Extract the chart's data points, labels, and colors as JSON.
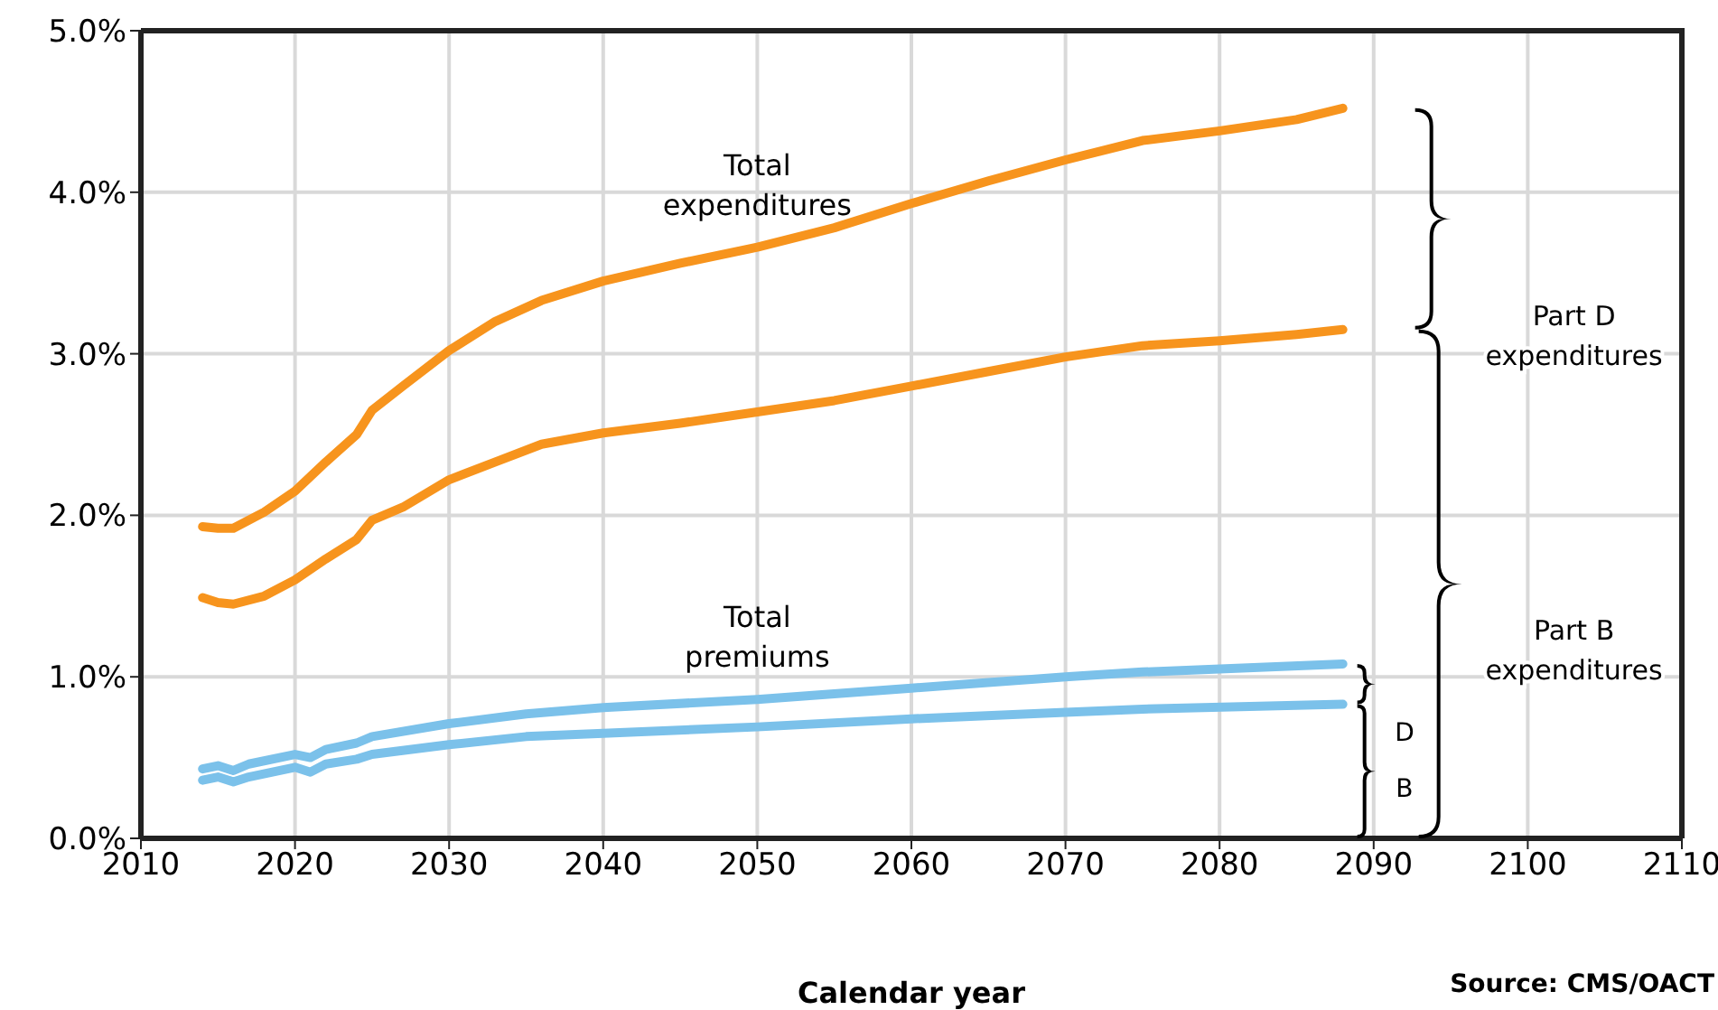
{
  "chart_data": {
    "type": "line",
    "xlabel": "Calendar year",
    "x": [
      2014,
      2015,
      2016,
      2018,
      2020,
      2022,
      2024,
      2025,
      2027,
      2030,
      2033,
      2036,
      2040,
      2045,
      2050,
      2055,
      2060,
      2065,
      2070,
      2075,
      2080,
      2085,
      2088
    ],
    "series": [
      {
        "name": "Total expenditures",
        "color": "#f7941d",
        "values": [
          1.93,
          1.92,
          1.92,
          2.02,
          2.15,
          2.33,
          2.5,
          2.65,
          2.8,
          3.02,
          3.2,
          3.33,
          3.45,
          3.56,
          3.66,
          3.78,
          3.93,
          4.07,
          4.2,
          4.32,
          4.38,
          4.45,
          4.52
        ]
      },
      {
        "color": "#f7941d",
        "values": [
          1.49,
          1.46,
          1.45,
          1.5,
          1.6,
          1.73,
          1.85,
          1.97,
          2.05,
          2.22,
          2.33,
          2.44,
          2.51,
          2.57,
          2.64,
          2.71,
          2.8,
          2.89,
          2.98,
          3.05,
          3.08,
          3.12,
          3.15
        ]
      },
      {
        "name": "Total premiums",
        "color": "#7bc1ea",
        "x": [
          2014,
          2015,
          2016,
          2017,
          2020,
          2021,
          2022,
          2024,
          2025,
          2030,
          2035,
          2040,
          2050,
          2060,
          2070,
          2075,
          2088
        ],
        "values": [
          0.43,
          0.45,
          0.42,
          0.46,
          0.52,
          0.5,
          0.55,
          0.59,
          0.63,
          0.71,
          0.77,
          0.81,
          0.86,
          0.93,
          1.0,
          1.03,
          1.08
        ]
      },
      {
        "color": "#7bc1ea",
        "x": [
          2014,
          2015,
          2016,
          2017,
          2020,
          2021,
          2022,
          2024,
          2025,
          2030,
          2035,
          2040,
          2050,
          2060,
          2070,
          2075,
          2088
        ],
        "values": [
          0.36,
          0.38,
          0.35,
          0.38,
          0.44,
          0.41,
          0.46,
          0.49,
          0.52,
          0.58,
          0.63,
          0.65,
          0.69,
          0.74,
          0.78,
          0.8,
          0.83
        ]
      }
    ],
    "xlim": [
      2010,
      2110
    ],
    "xticks": [
      2010,
      2020,
      2030,
      2040,
      2050,
      2060,
      2070,
      2080,
      2090,
      2100,
      2110
    ],
    "ylim": [
      0,
      5
    ],
    "yticks": [
      {
        "value": 0,
        "label": "0.0%"
      },
      {
        "value": 1,
        "label": "1.0%"
      },
      {
        "value": 2,
        "label": "2.0%"
      },
      {
        "value": 3,
        "label": "3.0%"
      },
      {
        "value": 4,
        "label": "4.0%"
      },
      {
        "value": 5,
        "label": "5.0%"
      }
    ],
    "grid": true,
    "marker": "none",
    "line_style": "solid",
    "annotations": [
      "Part D expenditures",
      "Part B expenditures",
      "D",
      "B",
      "Source: CMS/OACT"
    ]
  }
}
